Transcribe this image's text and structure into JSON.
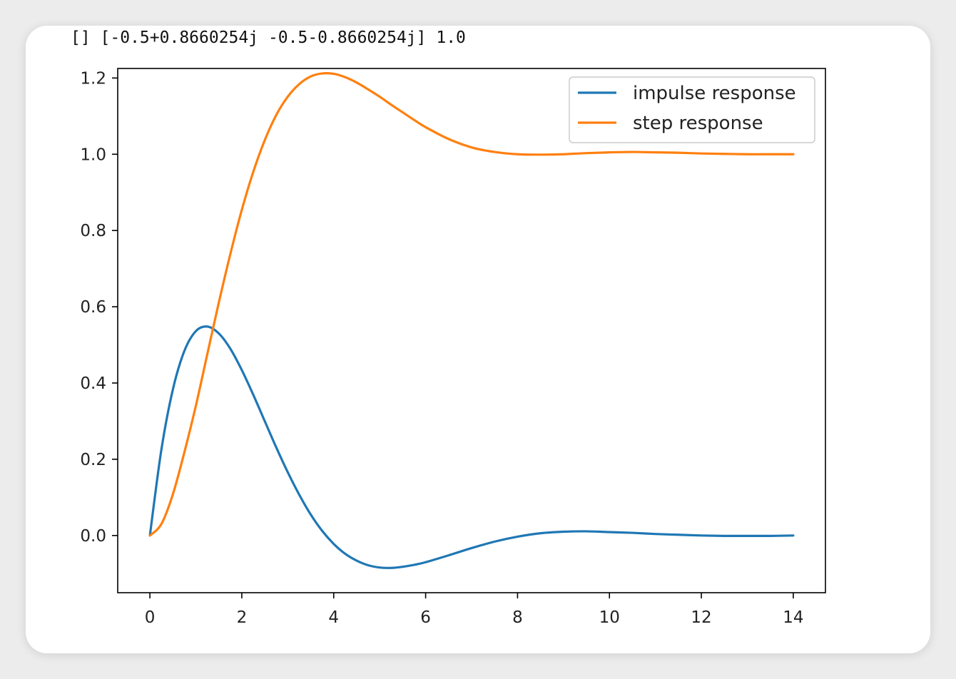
{
  "output_text": "[] [-0.5+0.8660254j -0.5-0.8660254j] 1.0",
  "chart_data": {
    "type": "line",
    "title": "",
    "xlabel": "",
    "ylabel": "",
    "xlim": [
      -0.7,
      14.7
    ],
    "ylim": [
      -0.15,
      1.225
    ],
    "xticks": [
      0,
      2,
      4,
      6,
      8,
      10,
      12,
      14
    ],
    "xtick_labels": [
      "0",
      "2",
      "4",
      "6",
      "8",
      "10",
      "12",
      "14"
    ],
    "yticks": [
      0.0,
      0.2,
      0.4,
      0.6,
      0.8,
      1.0,
      1.2
    ],
    "ytick_labels": [
      "0.0",
      "0.2",
      "0.4",
      "0.6",
      "0.8",
      "1.0",
      "1.2"
    ],
    "grid": false,
    "legend_position": "top-right",
    "series": [
      {
        "name": "impulse response",
        "color": "#1f77b4",
        "x": [
          0,
          0.25,
          0.5,
          0.75,
          1.0,
          1.25,
          1.5,
          1.75,
          2.0,
          2.25,
          2.5,
          2.75,
          3.0,
          3.25,
          3.5,
          3.75,
          4.0,
          4.25,
          4.5,
          4.75,
          5.0,
          5.25,
          5.5,
          5.75,
          6.0,
          6.5,
          7.0,
          7.5,
          8.0,
          8.5,
          9.0,
          9.5,
          10.0,
          10.5,
          11.0,
          11.5,
          12.0,
          12.5,
          13.0,
          13.5,
          14.0
        ],
        "y": [
          0.0,
          0.225,
          0.383,
          0.484,
          0.536,
          0.548,
          0.53,
          0.49,
          0.434,
          0.369,
          0.3,
          0.231,
          0.166,
          0.107,
          0.055,
          0.012,
          -0.022,
          -0.048,
          -0.066,
          -0.078,
          -0.084,
          -0.085,
          -0.082,
          -0.077,
          -0.07,
          -0.052,
          -0.033,
          -0.016,
          -0.003,
          0.006,
          0.01,
          0.011,
          0.009,
          0.007,
          0.004,
          0.002,
          0.0,
          -0.001,
          -0.001,
          -0.001,
          0.0
        ]
      },
      {
        "name": "step response",
        "color": "#ff7f0e",
        "x": [
          0,
          0.25,
          0.5,
          0.75,
          1.0,
          1.25,
          1.5,
          1.75,
          2.0,
          2.25,
          2.5,
          2.75,
          3.0,
          3.25,
          3.5,
          3.75,
          4.0,
          4.25,
          4.5,
          4.75,
          5.0,
          5.25,
          5.5,
          5.75,
          6.0,
          6.5,
          7.0,
          7.5,
          8.0,
          8.5,
          9.0,
          9.5,
          10.0,
          10.5,
          11.0,
          11.5,
          12.0,
          12.5,
          13.0,
          13.5,
          14.0
        ],
        "y": [
          0.0,
          0.03,
          0.108,
          0.218,
          0.34,
          0.476,
          0.611,
          0.738,
          0.854,
          0.954,
          1.037,
          1.103,
          1.151,
          1.184,
          1.204,
          1.212,
          1.211,
          1.202,
          1.188,
          1.17,
          1.151,
          1.13,
          1.11,
          1.09,
          1.071,
          1.04,
          1.018,
          1.006,
          1.0,
          0.999,
          1.0,
          1.003,
          1.005,
          1.006,
          1.005,
          1.004,
          1.002,
          1.001,
          1.0,
          1.0,
          1.0
        ]
      }
    ]
  }
}
